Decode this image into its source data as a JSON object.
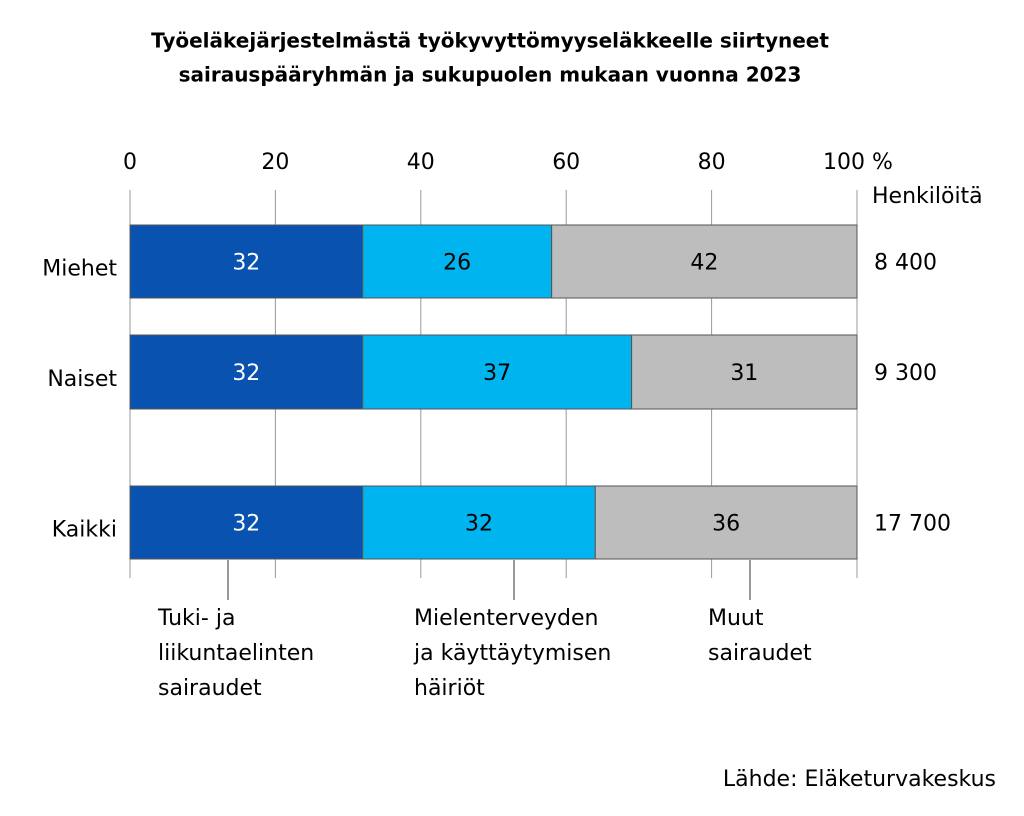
{
  "chart_data": {
    "type": "bar",
    "orientation": "horizontal",
    "stacked": true,
    "title": [
      "Työeläkejärjestelmästä työkyvyttömyyseläkkeelle siirtyneet",
      "sairauspääryhmän ja sukupuolen mukaan vuonna 2023"
    ],
    "categories": [
      "Miehet",
      "Naiset",
      "Kaikki"
    ],
    "series": [
      {
        "name": [
          "Tuki- ja",
          "liikuntaelinten",
          "sairaudet"
        ],
        "color": "#0a52b0",
        "label_color": "#ffffff",
        "values": [
          32,
          32,
          32
        ]
      },
      {
        "name": [
          "Mielenterveyden",
          "ja käyttäytymisen",
          "häiriöt"
        ],
        "color": "#00b4f0",
        "label_color": "#000000",
        "values": [
          26,
          37,
          32
        ]
      },
      {
        "name": [
          "Muut",
          "sairaudet"
        ],
        "color": "#bdbdbd",
        "label_color": "#000000",
        "values": [
          42,
          31,
          36
        ]
      }
    ],
    "xlim": [
      0,
      100
    ],
    "xticks": [
      0,
      20,
      40,
      60,
      80,
      {
        "value": 100,
        "label": "100 %"
      }
    ],
    "grid": true,
    "totals": {
      "title": "Henkilöitä",
      "values": [
        8400,
        9300,
        17700
      ],
      "value_labels": [
        "8 400",
        "9 300",
        "17 700"
      ]
    },
    "source": "Lähde: Eläketurvakeskus"
  }
}
